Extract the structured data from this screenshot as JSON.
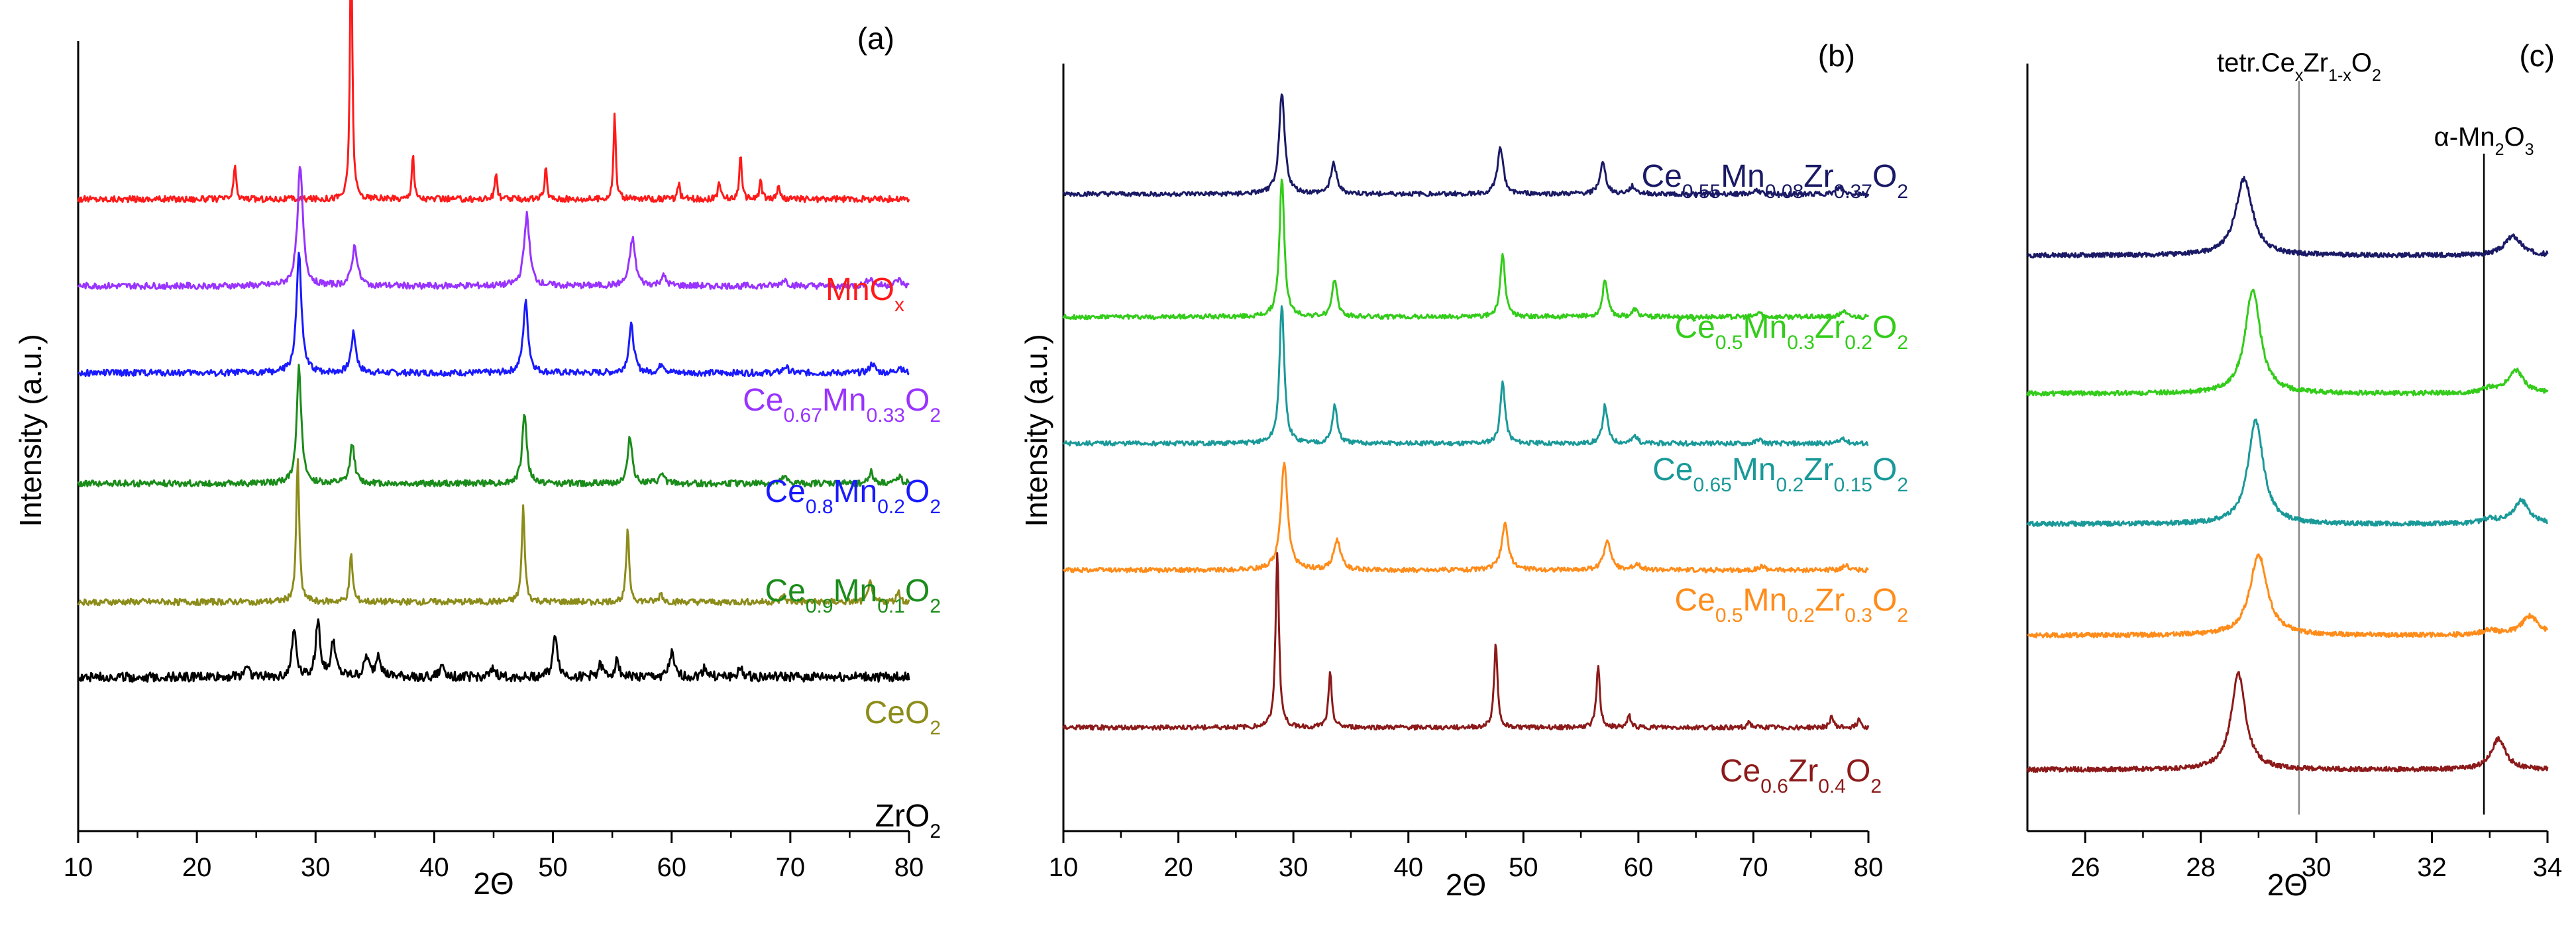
{
  "chart_data": [
    {
      "type": "line",
      "panel_label": "(a)",
      "xlabel": "2Θ",
      "ylabel": "Intensity (a.u.)",
      "xlim": [
        10,
        80
      ],
      "x_ticks": [
        10,
        20,
        30,
        40,
        50,
        60,
        70,
        80
      ],
      "grid": false,
      "series": [
        {
          "name": "MnOx",
          "label_main": [
            "MnO",
            "x"
          ],
          "label_scripts": [
            [
              "sub",
              ""
            ]
          ],
          "color": "#ff1a1a",
          "base": 0.2,
          "peaks": [
            [
              23.2,
              0.045
            ],
            [
              33.0,
              0.36
            ],
            [
              38.2,
              0.06
            ],
            [
              45.2,
              0.035
            ],
            [
              49.4,
              0.04
            ],
            [
              55.2,
              0.11
            ],
            [
              60.6,
              0.02
            ],
            [
              64.0,
              0.025
            ],
            [
              65.8,
              0.06
            ],
            [
              67.5,
              0.025
            ],
            [
              69.0,
              0.02
            ]
          ],
          "width": 0.22,
          "noise": 0.004
        },
        {
          "name": "Ce0.67Mn0.33O2",
          "color": "#9933ff",
          "base": 0.31,
          "peaks": [
            [
              28.7,
              0.15
            ],
            [
              33.3,
              0.05
            ],
            [
              47.8,
              0.09
            ],
            [
              56.7,
              0.06
            ],
            [
              59.3,
              0.012
            ],
            [
              69.5,
              0.008
            ],
            [
              76.7,
              0.01
            ],
            [
              79.1,
              0.008
            ]
          ],
          "width": 0.55,
          "noise": 0.004
        },
        {
          "name": "Ce0.8Mn0.2O2",
          "color": "#1a1aff",
          "base": 0.42,
          "peaks": [
            [
              28.6,
              0.15
            ],
            [
              33.2,
              0.05
            ],
            [
              47.7,
              0.09
            ],
            [
              56.6,
              0.06
            ],
            [
              59.2,
              0.012
            ],
            [
              69.6,
              0.008
            ],
            [
              76.9,
              0.012
            ],
            [
              79.2,
              0.008
            ]
          ],
          "width": 0.5,
          "noise": 0.004
        },
        {
          "name": "Ce0.9Mn0.1O2",
          "color": "#1a8c1a",
          "base": 0.56,
          "peaks": [
            [
              28.6,
              0.15
            ],
            [
              33.1,
              0.05
            ],
            [
              47.6,
              0.09
            ],
            [
              56.5,
              0.06
            ],
            [
              59.2,
              0.012
            ],
            [
              69.5,
              0.008
            ],
            [
              76.8,
              0.015
            ],
            [
              79.2,
              0.01
            ]
          ],
          "width": 0.45,
          "noise": 0.004
        },
        {
          "name": "CeO2",
          "color": "#8c8c1a",
          "base": 0.71,
          "peaks": [
            [
              28.5,
              0.18
            ],
            [
              33.0,
              0.06
            ],
            [
              47.5,
              0.12
            ],
            [
              56.3,
              0.09
            ],
            [
              59.1,
              0.012
            ],
            [
              69.4,
              0.01
            ],
            [
              76.7,
              0.03
            ],
            [
              79.1,
              0.015
            ]
          ],
          "width": 0.3,
          "noise": 0.004
        },
        {
          "name": "ZrO2",
          "color": "#000000",
          "base": 0.805,
          "peaks": [
            [
              24.2,
              0.015
            ],
            [
              28.2,
              0.06
            ],
            [
              30.2,
              0.07
            ],
            [
              31.5,
              0.045
            ],
            [
              34.3,
              0.025
            ],
            [
              35.3,
              0.03
            ],
            [
              40.7,
              0.015
            ],
            [
              45.0,
              0.01
            ],
            [
              50.2,
              0.055
            ],
            [
              54.0,
              0.015
            ],
            [
              55.4,
              0.02
            ],
            [
              60.0,
              0.03
            ],
            [
              62.8,
              0.012
            ],
            [
              65.8,
              0.01
            ]
          ],
          "width": 0.45,
          "noise": 0.006
        }
      ],
      "labels": [
        {
          "series": 0,
          "parts": [
            [
              "MnO",
              ""
            ],
            [
              "x",
              "sub"
            ]
          ]
        },
        {
          "series": 1,
          "parts": [
            [
              "Ce",
              ""
            ],
            [
              "0.67",
              "sub"
            ],
            [
              "Mn",
              ""
            ],
            [
              "0.33",
              "sub"
            ],
            [
              "O",
              ""
            ],
            [
              "2",
              "sub"
            ]
          ]
        },
        {
          "series": 2,
          "parts": [
            [
              "Ce",
              ""
            ],
            [
              "0.8",
              "sub"
            ],
            [
              "Mn",
              ""
            ],
            [
              "0.2",
              "sub"
            ],
            [
              "O",
              ""
            ],
            [
              "2",
              "sub"
            ]
          ]
        },
        {
          "series": 3,
          "parts": [
            [
              "Ce",
              ""
            ],
            [
              "0.9",
              "sub"
            ],
            [
              "Mn",
              ""
            ],
            [
              "0.1",
              "sub"
            ],
            [
              "O",
              ""
            ],
            [
              "2",
              "sub"
            ]
          ]
        },
        {
          "series": 4,
          "parts": [
            [
              "CeO",
              ""
            ],
            [
              "2",
              "sub"
            ]
          ]
        },
        {
          "series": 5,
          "parts": [
            [
              "ZrO",
              ""
            ],
            [
              "2",
              "sub"
            ]
          ]
        }
      ]
    },
    {
      "type": "line",
      "panel_label": "(b)",
      "xlabel": "2Θ",
      "ylabel": "Intensity (a.u.)",
      "xlim": [
        10,
        80
      ],
      "x_ticks": [
        10,
        20,
        30,
        40,
        50,
        60,
        70,
        80
      ],
      "grid": false,
      "series": [
        {
          "name": "Ce0.55Mn0.08Zr0.37O2",
          "color": "#1a1a66",
          "base": 0.17,
          "peaks": [
            [
              29.0,
              0.13
            ],
            [
              33.5,
              0.04
            ],
            [
              48.0,
              0.06
            ],
            [
              56.9,
              0.04
            ],
            [
              59.5,
              0.01
            ],
            [
              70.3,
              0.005
            ],
            [
              77.5,
              0.008
            ]
          ],
          "width": 0.6,
          "noise": 0.003
        },
        {
          "name": "Ce0.5Mn0.3Zr0.2O2",
          "color": "#33cc1a",
          "base": 0.33,
          "peaks": [
            [
              29.0,
              0.18
            ],
            [
              33.6,
              0.05
            ],
            [
              48.2,
              0.08
            ],
            [
              57.1,
              0.05
            ],
            [
              59.7,
              0.01
            ],
            [
              70.5,
              0.006
            ],
            [
              77.8,
              0.008
            ]
          ],
          "width": 0.5,
          "noise": 0.003
        },
        {
          "name": "Ce0.65Mn0.2Zr0.15O2",
          "color": "#1a9999",
          "base": 0.495,
          "peaks": [
            [
              29.0,
              0.18
            ],
            [
              33.6,
              0.05
            ],
            [
              48.2,
              0.08
            ],
            [
              57.1,
              0.05
            ],
            [
              59.7,
              0.01
            ],
            [
              70.5,
              0.006
            ],
            [
              77.8,
              0.008
            ]
          ],
          "width": 0.5,
          "noise": 0.003
        },
        {
          "name": "Ce0.5Mn0.2Zr0.3O2",
          "color": "#ff8c1a",
          "base": 0.66,
          "peaks": [
            [
              29.2,
              0.14
            ],
            [
              33.8,
              0.04
            ],
            [
              48.4,
              0.06
            ],
            [
              57.3,
              0.04
            ],
            [
              59.9,
              0.008
            ],
            [
              70.7,
              0.005
            ],
            [
              78.0,
              0.006
            ]
          ],
          "width": 0.7,
          "noise": 0.003
        },
        {
          "name": "Ce0.6Zr0.4O2",
          "color": "#8c1a1a",
          "base": 0.865,
          "peaks": [
            [
              28.6,
              0.23
            ],
            [
              33.2,
              0.07
            ],
            [
              47.6,
              0.11
            ],
            [
              56.5,
              0.08
            ],
            [
              59.2,
              0.015
            ],
            [
              69.6,
              0.008
            ],
            [
              76.8,
              0.015
            ],
            [
              79.2,
              0.012
            ]
          ],
          "width": 0.35,
          "noise": 0.003
        }
      ],
      "labels": [
        {
          "series": 0,
          "parts": [
            [
              "Ce",
              ""
            ],
            [
              "0.55",
              "sub"
            ],
            [
              "Mn",
              ""
            ],
            [
              "0.08",
              "sub"
            ],
            [
              "Zr",
              ""
            ],
            [
              "0.37",
              "sub"
            ],
            [
              "O",
              ""
            ],
            [
              "2",
              "sub"
            ]
          ]
        },
        {
          "series": 1,
          "parts": [
            [
              "Ce",
              ""
            ],
            [
              "0.5",
              "sub"
            ],
            [
              "Mn",
              ""
            ],
            [
              "0.3",
              "sub"
            ],
            [
              "Zr",
              ""
            ],
            [
              "0.2",
              "sub"
            ],
            [
              "O",
              ""
            ],
            [
              "2",
              "sub"
            ]
          ]
        },
        {
          "series": 2,
          "parts": [
            [
              "Ce",
              ""
            ],
            [
              "0.65",
              "sub"
            ],
            [
              "Mn",
              ""
            ],
            [
              "0.2",
              "sub"
            ],
            [
              "Zr",
              ""
            ],
            [
              "0.15",
              "sub"
            ],
            [
              "O",
              ""
            ],
            [
              "2",
              "sub"
            ]
          ]
        },
        {
          "series": 3,
          "parts": [
            [
              "Ce",
              ""
            ],
            [
              "0.5",
              "sub"
            ],
            [
              "Mn",
              ""
            ],
            [
              "0.2",
              "sub"
            ],
            [
              "Zr",
              ""
            ],
            [
              "0.3",
              "sub"
            ],
            [
              "O",
              ""
            ],
            [
              "2",
              "sub"
            ]
          ]
        },
        {
          "series": 4,
          "parts": [
            [
              "Ce",
              ""
            ],
            [
              "0.6",
              "sub"
            ],
            [
              "Zr",
              ""
            ],
            [
              "0.4",
              "sub"
            ],
            [
              "O",
              ""
            ],
            [
              "2",
              "sub"
            ]
          ]
        }
      ]
    },
    {
      "type": "line",
      "panel_label": "(c)",
      "xlabel": "2Θ",
      "ylabel": "",
      "xlim": [
        25,
        34
      ],
      "x_ticks": [
        26,
        28,
        30,
        32,
        34
      ],
      "grid": false,
      "series": [
        {
          "name": "Ce0.55Mn0.08Zr0.37O2",
          "color": "#1a1a66",
          "base": 0.25,
          "peaks": [
            [
              28.75,
              0.1
            ],
            [
              33.4,
              0.025
            ]
          ],
          "width": 0.35,
          "noise": 0.003
        },
        {
          "name": "Ce0.5Mn0.3Zr0.2O2",
          "color": "#33cc1a",
          "base": 0.43,
          "peaks": [
            [
              28.9,
              0.135
            ],
            [
              33.45,
              0.03
            ],
            [
              33.0,
              0.006
            ]
          ],
          "width": 0.32,
          "noise": 0.003
        },
        {
          "name": "Ce0.65Mn0.2Zr0.15O2",
          "color": "#1a9999",
          "base": 0.6,
          "peaks": [
            [
              28.95,
              0.135
            ],
            [
              33.55,
              0.03
            ],
            [
              33.0,
              0.006
            ]
          ],
          "width": 0.32,
          "noise": 0.003
        },
        {
          "name": "Ce0.5Mn0.2Zr0.3O2",
          "color": "#ff8c1a",
          "base": 0.745,
          "peaks": [
            [
              29.0,
              0.105
            ],
            [
              33.7,
              0.025
            ],
            [
              33.0,
              0.006
            ]
          ],
          "width": 0.36,
          "noise": 0.003
        },
        {
          "name": "Ce0.6Zr0.4O2",
          "color": "#8c1a1a",
          "base": 0.92,
          "peaks": [
            [
              28.65,
              0.125
            ],
            [
              33.15,
              0.04
            ]
          ],
          "width": 0.3,
          "noise": 0.003
        }
      ],
      "ref_lines": [
        {
          "x": 29.7,
          "color": "#888888"
        },
        {
          "x": 32.9,
          "color": "#000000"
        }
      ],
      "annotations": [
        {
          "x": 29.7,
          "parts": [
            [
              "tetr.Ce",
              ""
            ],
            [
              "x",
              "sub"
            ],
            [
              "Zr",
              ""
            ],
            [
              "1-x",
              "sub"
            ],
            [
              "O",
              ""
            ],
            [
              "2",
              "sub"
            ]
          ]
        },
        {
          "x": 32.9,
          "parts": [
            [
              "α-Mn",
              ""
            ],
            [
              "2",
              "sub"
            ],
            [
              "O",
              ""
            ],
            [
              "3",
              "sub"
            ]
          ]
        }
      ]
    }
  ]
}
